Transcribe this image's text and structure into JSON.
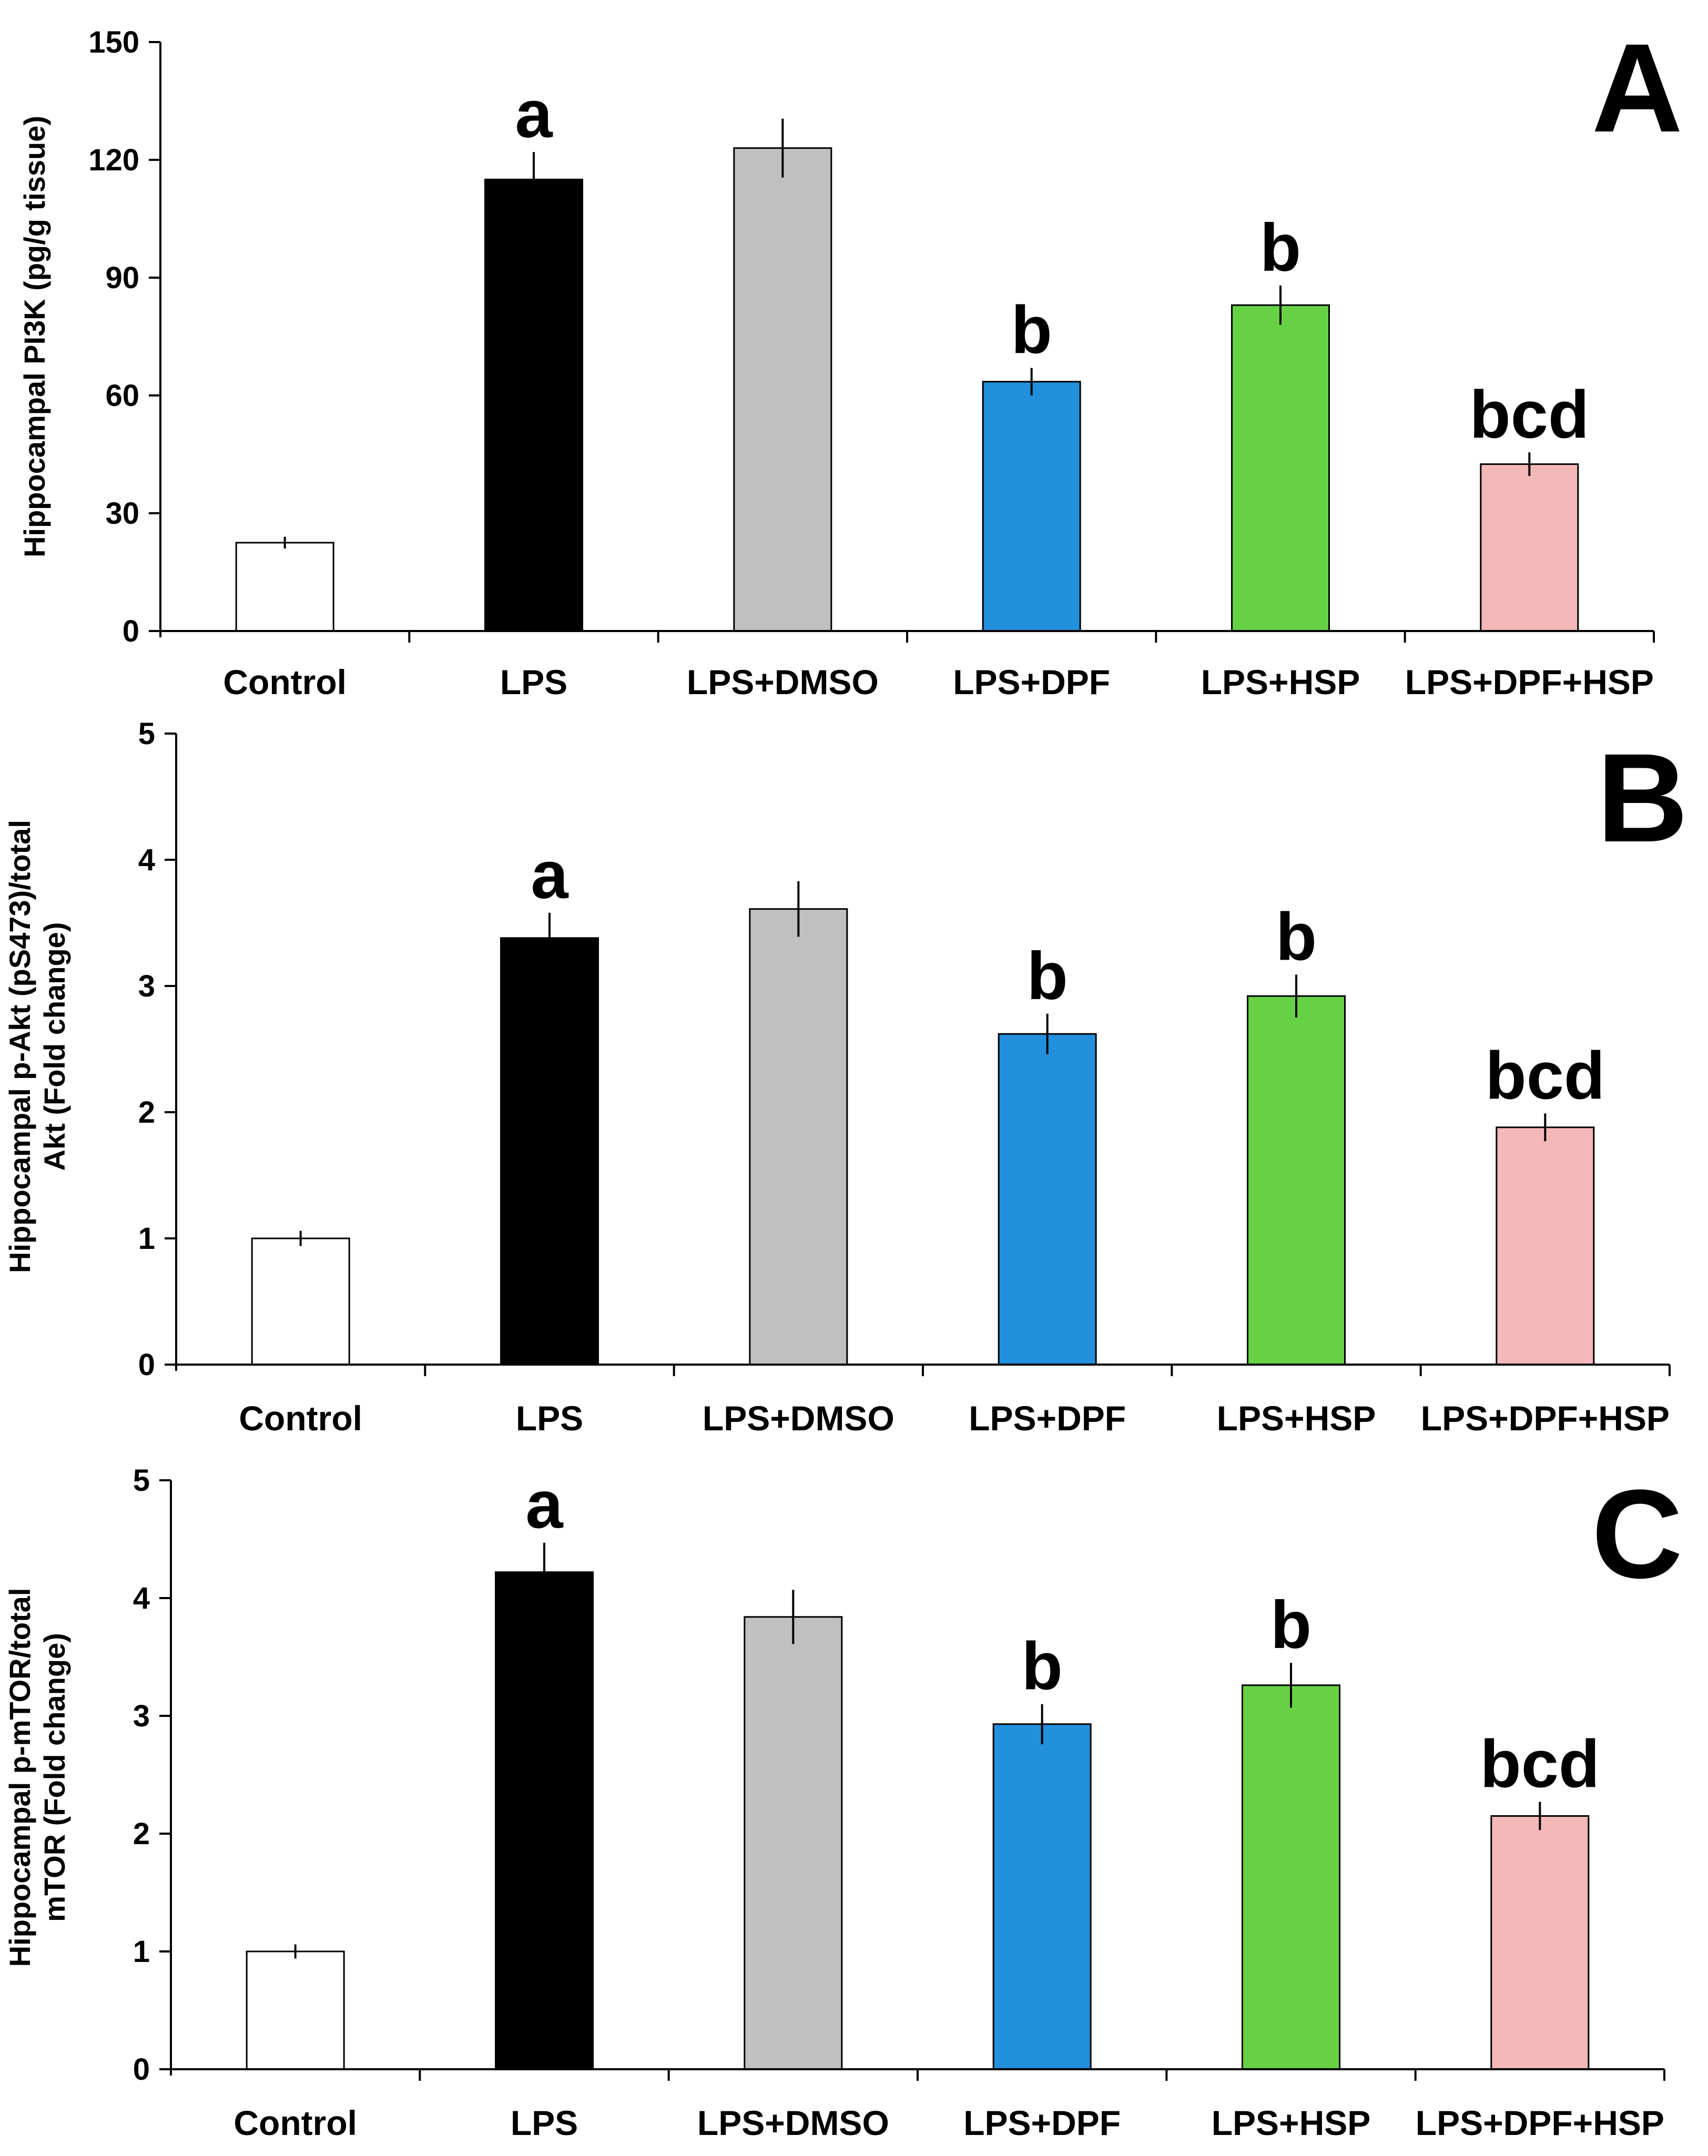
{
  "chart_data": [
    {
      "type": "bar",
      "panel_label": "A",
      "ylabel_lines": [
        "Hippocampal PI3K (pg/g tissue)"
      ],
      "yticks": [
        0,
        30,
        60,
        90,
        120,
        150
      ],
      "ylim": [
        0,
        150
      ],
      "categories": [
        "Control",
        "LPS",
        "LPS+DMSO",
        "LPS+DPF",
        "LPS+HSP",
        "LPS+DPF+HSP"
      ],
      "values": [
        22.5,
        115,
        123,
        63.5,
        83,
        42.5
      ],
      "errors": [
        1.5,
        7,
        7.5,
        3.5,
        5,
        3
      ],
      "annotations": [
        "",
        "a",
        "",
        "b",
        "b",
        "bcd"
      ],
      "colors": [
        "#ffffff",
        "#000000",
        "#c0c0c0",
        "#2390dd",
        "#66d144",
        "#f4b8b8"
      ]
    },
    {
      "type": "bar",
      "panel_label": "B",
      "ylabel_lines": [
        "Hippocampal p-Akt (pS473)/total",
        "Akt (Fold change)"
      ],
      "yticks": [
        0,
        1,
        2,
        3,
        4,
        5
      ],
      "ylim": [
        0,
        5
      ],
      "categories": [
        "Control",
        "LPS",
        "LPS+DMSO",
        "LPS+DPF",
        "LPS+HSP",
        "LPS+DPF+HSP"
      ],
      "values": [
        1.0,
        3.38,
        3.61,
        2.62,
        2.92,
        1.88
      ],
      "errors": [
        0.06,
        0.2,
        0.22,
        0.16,
        0.17,
        0.11
      ],
      "annotations": [
        "",
        "a",
        "",
        "b",
        "b",
        "bcd"
      ],
      "colors": [
        "#ffffff",
        "#000000",
        "#c0c0c0",
        "#2390dd",
        "#66d144",
        "#f4b8b8"
      ]
    },
    {
      "type": "bar",
      "panel_label": "C",
      "ylabel_lines": [
        "Hippocampal p-mTOR/total",
        "mTOR (Fold change)"
      ],
      "yticks": [
        0,
        1,
        2,
        3,
        4,
        5
      ],
      "ylim": [
        0,
        5
      ],
      "categories": [
        "Control",
        "LPS",
        "LPS+DMSO",
        "LPS+DPF",
        "LPS+HSP",
        "LPS+DPF+HSP"
      ],
      "values": [
        1.0,
        4.22,
        3.84,
        2.93,
        3.26,
        2.15
      ],
      "errors": [
        0.06,
        0.25,
        0.23,
        0.17,
        0.19,
        0.12
      ],
      "annotations": [
        "",
        "a",
        "",
        "b",
        "b",
        "bcd"
      ],
      "colors": [
        "#ffffff",
        "#000000",
        "#c0c0c0",
        "#2390dd",
        "#66d144",
        "#f4b8b8"
      ]
    }
  ]
}
